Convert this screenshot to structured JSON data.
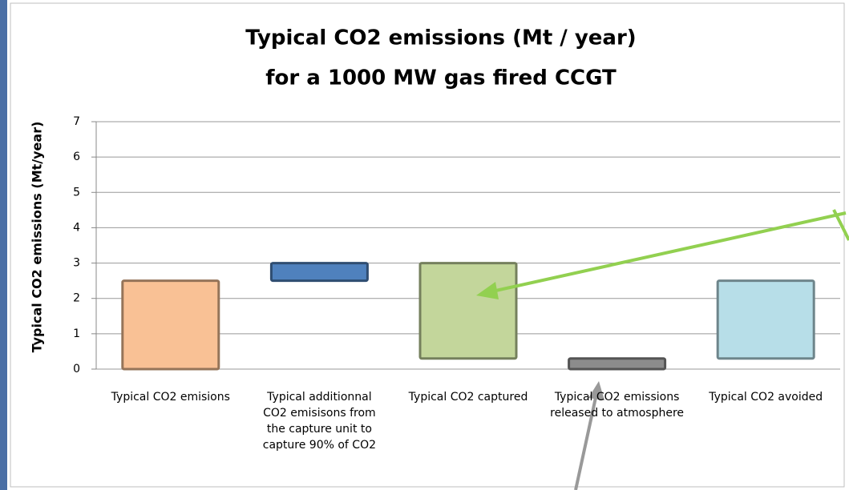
{
  "chart_data": {
    "type": "floating-bar",
    "title": "Typical CO2 emissions (Mt / year)",
    "subtitle": "for a 1000 MW gas fired CCGT",
    "y_label": "Typical CO2 emissions (Mt/year)",
    "categories": [
      "Typical CO2 emisions",
      "Typical additionnal CO2 emisisons from the capture unit to capture 90% of CO2",
      "Typical CO2 captured",
      "Typical CO2 emissions released to atmosphere",
      "Typical CO2 avoided"
    ],
    "low": [
      0,
      2.5,
      0.3,
      0,
      0.3
    ],
    "high": [
      2.5,
      3,
      3,
      0.3,
      2.5
    ],
    "colors": [
      "#f9c195",
      "#4f81bd",
      "#c3d69b",
      "#8c8c8c",
      "#b7dee8"
    ],
    "ylim": [
      0,
      7
    ],
    "yticks": [
      0,
      1,
      2,
      3,
      4,
      5,
      6,
      7
    ],
    "grid": true
  }
}
